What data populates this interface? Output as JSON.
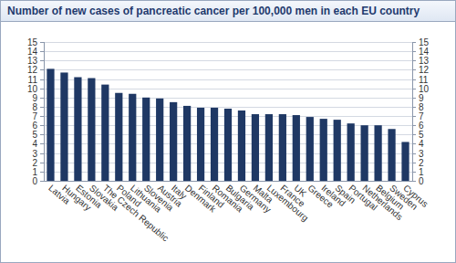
{
  "chart_data": {
    "type": "bar",
    "title": "Number of new cases of pancreatic cancer per 100,000 men in each EU country",
    "categories": [
      "Latvia",
      "Hungary",
      "Estonia",
      "Slovakia",
      "The Czech Republic",
      "Poland",
      "Lithuania",
      "Slovenia",
      "Austria",
      "Italy",
      "Denmark",
      "Finland",
      "Romania",
      "Bulgaria",
      "Germany",
      "Malta",
      "Luxembourg",
      "France",
      "UK",
      "Greece",
      "Ireland",
      "Spain",
      "Portugal",
      "Netherlands",
      "Belgium",
      "Sweden",
      "Cyprus"
    ],
    "values": [
      12.1,
      11.7,
      11.2,
      11.1,
      10.4,
      9.5,
      9.4,
      9.0,
      8.9,
      8.5,
      8.1,
      7.9,
      7.9,
      7.8,
      7.6,
      7.2,
      7.2,
      7.2,
      7.1,
      6.9,
      6.7,
      6.6,
      6.2,
      6.0,
      6.0,
      5.6,
      4.2
    ],
    "color": "#1f3864",
    "ylim": [
      0,
      15
    ],
    "yticks": [
      0,
      1,
      2,
      3,
      4,
      5,
      6,
      7,
      8,
      9,
      10,
      11,
      12,
      13,
      14,
      15
    ],
    "grid": true
  }
}
